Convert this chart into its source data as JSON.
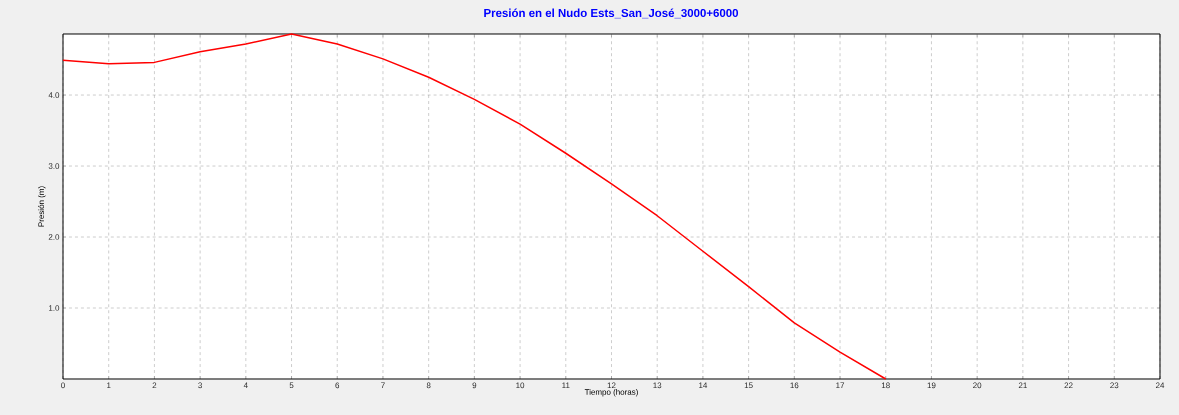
{
  "chart_data": {
    "type": "line",
    "title": "Presión en el Nudo Ests_San_José_3000+6000",
    "xlabel": "Tiempo (horas)",
    "ylabel": "Presión (m)",
    "x": [
      0,
      1,
      2,
      3,
      4,
      5,
      6,
      7,
      8,
      9,
      10,
      11,
      12,
      13,
      14,
      15,
      16,
      17,
      18
    ],
    "series": [
      {
        "color": "#ff0000",
        "values": [
          4.49,
          4.44,
          4.46,
          4.61,
          4.72,
          4.86,
          4.72,
          4.51,
          4.25,
          3.94,
          3.59,
          3.18,
          2.75,
          2.3,
          1.8,
          1.3,
          0.79,
          0.38,
          0
        ]
      }
    ],
    "xlim": [
      0,
      24
    ],
    "xticks": [
      0,
      1,
      2,
      3,
      4,
      5,
      6,
      7,
      8,
      9,
      10,
      11,
      12,
      13,
      14,
      15,
      16,
      17,
      18,
      19,
      20,
      21,
      22,
      23,
      24
    ],
    "ylim": [
      0,
      4.86
    ],
    "yticks": [
      {
        "value": 1,
        "label": "1.0"
      },
      {
        "value": 2,
        "label": "2.0"
      },
      {
        "value": 3,
        "label": "3.0"
      },
      {
        "value": 4,
        "label": "4.0"
      }
    ],
    "grid": true,
    "marker": "none",
    "line_style": "solid"
  }
}
